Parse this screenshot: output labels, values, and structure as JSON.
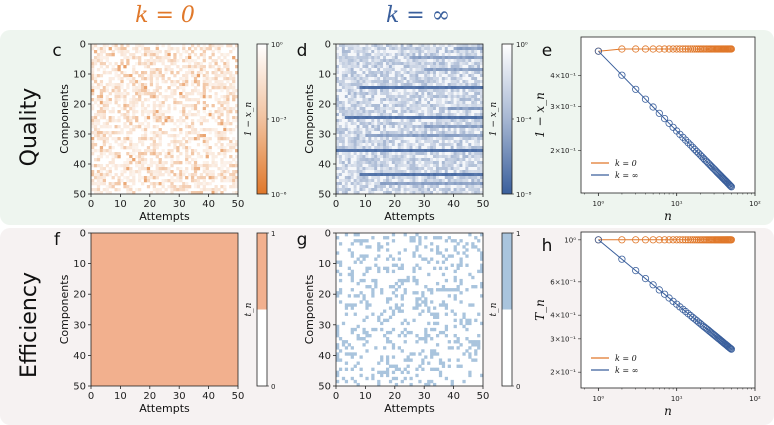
{
  "column_headers": [
    {
      "text": "k = 0",
      "color": "#e0782a"
    },
    {
      "text": "k = ∞",
      "color": "#3a5f9c"
    }
  ],
  "row_labels": [
    "Quality",
    "Efficiency"
  ],
  "colors": {
    "orange": "#e0782a",
    "orange_light": "#f2b08e",
    "blue": "#3a5f9c",
    "blue_light": "#a9c4dd",
    "quality_band": "#eef5ef",
    "efficiency_band": "#f6f2f2"
  },
  "chart_data": [
    {
      "id": "c",
      "type": "heatmap",
      "cmap": "orange",
      "xlabel": "Attempts",
      "ylabel": "Components",
      "xticks": [
        0,
        10,
        20,
        30,
        40,
        50
      ],
      "yticks": [
        0,
        10,
        20,
        30,
        40,
        50
      ],
      "rows": 50,
      "cols": 50,
      "colorbar": {
        "label": "1 − x_n",
        "ticks": [
          "10⁰",
          "10⁻³",
          "10⁻⁶"
        ],
        "scale": "log",
        "range": [
          1e-06,
          1
        ]
      },
      "description": "mostly near-white cells with sparse light-orange speckle"
    },
    {
      "id": "d",
      "type": "heatmap",
      "cmap": "blue",
      "xlabel": "Attempts",
      "ylabel": "Components",
      "xticks": [
        0,
        10,
        20,
        30,
        40,
        50
      ],
      "yticks": [
        0,
        10,
        20,
        30,
        40,
        50
      ],
      "rows": 50,
      "cols": 50,
      "colorbar": {
        "label": "1 − x_n",
        "ticks": [
          "10⁰",
          "10⁻⁴",
          "10⁻⁸"
        ],
        "scale": "log",
        "range": [
          1e-08,
          1
        ]
      },
      "streak_rows": [
        {
          "row": 35,
          "start": 0,
          "tone": "dark"
        },
        {
          "row": 43,
          "start": 8,
          "tone": "dark"
        },
        {
          "row": 24,
          "start": 3,
          "tone": "dark"
        },
        {
          "row": 14,
          "start": 8,
          "tone": "dark"
        },
        {
          "row": 30,
          "start": 10,
          "tone": "mid"
        },
        {
          "row": 4,
          "start": 25,
          "tone": "mid"
        },
        {
          "row": 8,
          "start": 30,
          "tone": "mid"
        },
        {
          "row": 21,
          "start": 38,
          "tone": "mid"
        },
        {
          "row": 27,
          "start": 30,
          "tone": "mid"
        },
        {
          "row": 1,
          "start": 40,
          "tone": "mid"
        },
        {
          "row": 46,
          "start": 15,
          "tone": "mid"
        }
      ]
    },
    {
      "id": "e",
      "type": "line",
      "xscale": "log",
      "yscale": "log",
      "xlabel": "n",
      "ylabel": "1 − x_n",
      "xlim": [
        0.6,
        100
      ],
      "ylim": [
        0.135,
        0.57
      ],
      "xticks": [
        "10⁰",
        "10¹",
        "10²"
      ],
      "yticks": [
        {
          "value": 0.4,
          "label": "4×10⁻¹"
        },
        {
          "value": 0.3,
          "label": "3×10⁻¹"
        },
        {
          "value": 0.2,
          "label": "2×10⁻¹"
        }
      ],
      "legend": [
        "k = 0",
        "k = ∞"
      ],
      "legend_loc": "lower-left",
      "series": [
        {
          "name": "k = 0",
          "color": "orange",
          "n_max": 50,
          "start": 0.5,
          "exponent": 0.0,
          "last": 0.51
        },
        {
          "name": "k = ∞",
          "color": "blue",
          "n_max": 50,
          "start": 0.5,
          "exponent": 0.32
        }
      ]
    },
    {
      "id": "f",
      "type": "heatmap",
      "cmap": "orange",
      "xlabel": "Attempts",
      "ylabel": "Components",
      "xticks": [
        0,
        10,
        20,
        30,
        40,
        50
      ],
      "yticks": [
        0,
        10,
        20,
        30,
        40,
        50
      ],
      "rows": 50,
      "cols": 50,
      "fill": "all_ones",
      "colorbar": {
        "label": "t_n",
        "ticks": [
          "1",
          "0"
        ],
        "range": [
          0,
          1
        ],
        "binary": true
      }
    },
    {
      "id": "g",
      "type": "heatmap",
      "cmap": "blue",
      "xlabel": "Attempts",
      "ylabel": "Components",
      "xticks": [
        0,
        10,
        20,
        30,
        40,
        50
      ],
      "yticks": [
        0,
        10,
        20,
        30,
        40,
        50
      ],
      "rows": 50,
      "cols": 50,
      "fill": "sparse_ones",
      "density": 0.22,
      "colorbar": {
        "label": "t_n",
        "ticks": [
          "1",
          "0"
        ],
        "range": [
          0,
          1
        ],
        "binary": true
      }
    },
    {
      "id": "h",
      "type": "line",
      "xscale": "log",
      "yscale": "log",
      "xlabel": "n",
      "ylabel": "T_n",
      "xlim": [
        0.6,
        100
      ],
      "ylim": [
        0.165,
        1.1
      ],
      "xticks": [
        "10⁰",
        "10¹",
        "10²"
      ],
      "yticks": [
        {
          "value": 1.0,
          "label": "10⁰"
        },
        {
          "value": 0.6,
          "label": "6×10⁻¹"
        },
        {
          "value": 0.4,
          "label": "4×10⁻¹"
        },
        {
          "value": 0.3,
          "label": "3×10⁻¹"
        },
        {
          "value": 0.2,
          "label": "2×10⁻¹"
        }
      ],
      "legend": [
        "k = 0",
        "k = ∞"
      ],
      "legend_loc": "lower-left",
      "series": [
        {
          "name": "k = 0",
          "color": "orange",
          "n_max": 50,
          "start": 1.0,
          "exponent": 0.0
        },
        {
          "name": "k = ∞",
          "color": "blue",
          "n_max": 50,
          "start": 1.0,
          "exponent": 0.34
        }
      ]
    }
  ]
}
